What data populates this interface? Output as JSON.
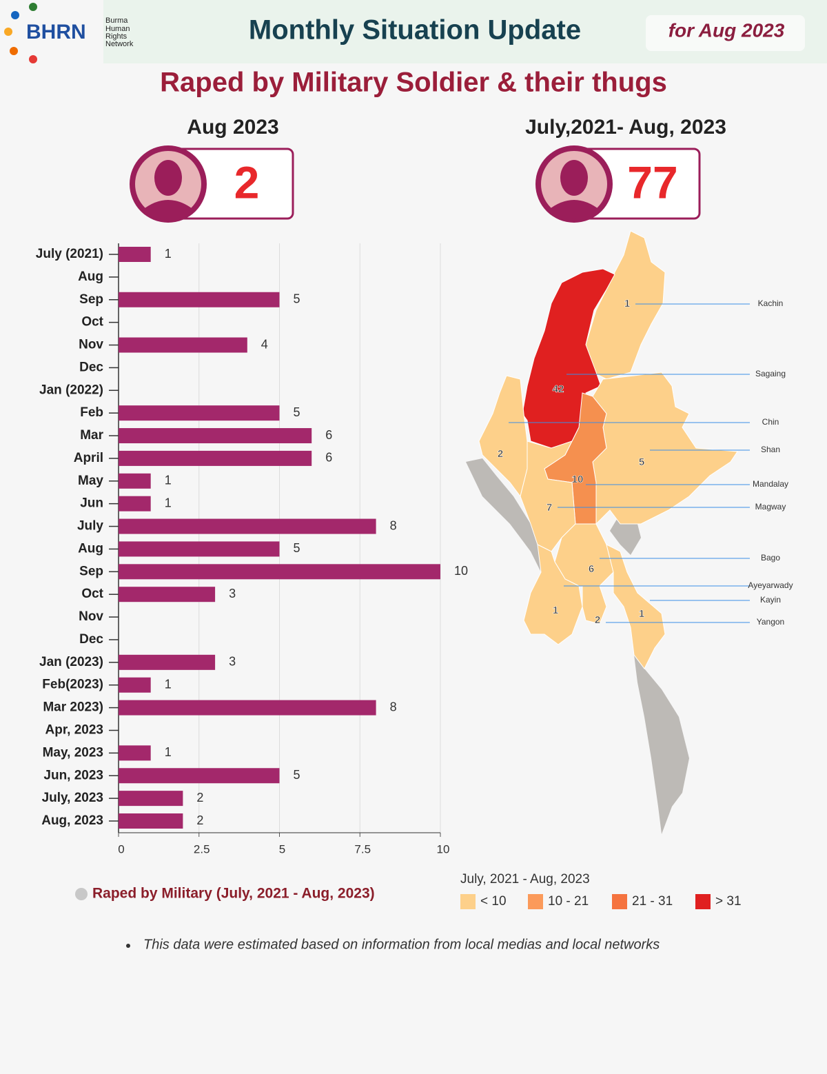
{
  "header": {
    "logo": "BHRN",
    "org_lines": [
      "Burma",
      "Human",
      "Rights",
      "Network"
    ],
    "title": "Monthly Situation Update",
    "period": "for Aug 2023"
  },
  "headline": "Raped by Military Soldier & their thugs",
  "stats": [
    {
      "label": "Aug 2023",
      "value": 2
    },
    {
      "label": "July,2021- Aug, 2023",
      "value": 77
    }
  ],
  "chart_data": {
    "type": "bar",
    "orientation": "horizontal",
    "categories": [
      "July (2021)",
      "Aug",
      "Sep",
      "Oct",
      "Nov",
      "Dec",
      "Jan (2022)",
      "Feb",
      "Mar",
      "April",
      "May",
      "Jun",
      "July",
      "Aug",
      "Sep",
      "Oct",
      "Nov",
      "Dec",
      "Jan (2023)",
      "Feb(2023)",
      "Mar 2023)",
      "Apr, 2023",
      "May, 2023",
      "Jun, 2023",
      "July, 2023",
      "Aug, 2023"
    ],
    "series": [
      {
        "name": "Raped by Military (July, 2021 - Aug, 2023)",
        "color": "#a3286b",
        "values": [
          1,
          null,
          5,
          null,
          4,
          null,
          null,
          5,
          6,
          6,
          1,
          1,
          8,
          5,
          10,
          3,
          null,
          null,
          3,
          1,
          8,
          null,
          1,
          5,
          2,
          2
        ]
      }
    ],
    "xlim": [
      0,
      10
    ],
    "xticks": [
      0,
      2.5,
      5,
      7.5,
      10
    ],
    "grid": true,
    "legend_color": "#c8c8c8"
  },
  "map": {
    "legend_title": "July, 2021 - Aug, 2023",
    "legend": [
      {
        "label": "< 10",
        "color": "#fdd08a"
      },
      {
        "label": "10 - 21",
        "color": "#fb9a5a"
      },
      {
        "label": "21 - 31",
        "color": "#f5733f"
      },
      {
        "label": "> 31",
        "color": "#e02020"
      }
    ],
    "regions": [
      {
        "name": "Kachin",
        "value": 1,
        "color": "#fdd08a"
      },
      {
        "name": "Sagaing",
        "value": 42,
        "color": "#e02020"
      },
      {
        "name": "Chin",
        "value": 2,
        "color": "#fdd08a"
      },
      {
        "name": "Shan",
        "value": 5,
        "color": "#fdd08a"
      },
      {
        "name": "Mandalay",
        "value": 10,
        "color": "#f5904f"
      },
      {
        "name": "Magway",
        "value": 7,
        "color": "#fdd08a"
      },
      {
        "name": "Bago",
        "value": 6,
        "color": "#fdd08a"
      },
      {
        "name": "Ayeyarwady",
        "value": 1,
        "color": "#fdd08a"
      },
      {
        "name": "Kayin",
        "value": 1,
        "color": "#fdd08a"
      },
      {
        "name": "Yangon",
        "value": 2,
        "color": "#fdd08a"
      }
    ]
  },
  "footnote": "This data were estimated based on information from local medias and local networks"
}
